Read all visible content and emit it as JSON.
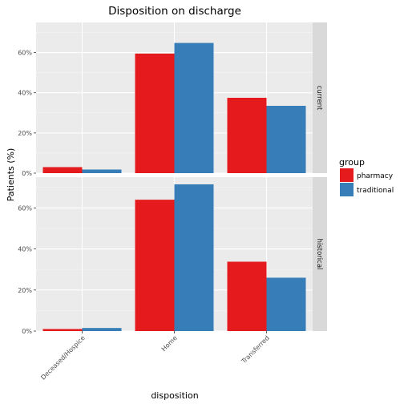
{
  "chart_data": {
    "type": "bar",
    "title": "Disposition on discharge",
    "xlabel": "disposition",
    "ylabel": "Patients (%)",
    "categories": [
      "Deceased/Hospice",
      "Home",
      "Transferred"
    ],
    "ylim": [
      0,
      0.75
    ],
    "yticks": [
      0,
      0.2,
      0.4,
      0.6
    ],
    "ytick_labels": [
      "0%",
      "20%",
      "40%",
      "60%"
    ],
    "legend": {
      "title": "group",
      "position": "right",
      "entries": [
        "pharmacy",
        "traditional"
      ]
    },
    "colors": {
      "pharmacy": "#E41A1C",
      "traditional": "#377EB8",
      "panel_bg": "#EBEBEB",
      "strip_bg": "#D9D9D9"
    },
    "grid": true,
    "facets": [
      {
        "label": "current",
        "series": [
          {
            "name": "pharmacy",
            "values": [
              0.03,
              0.595,
              0.375
            ]
          },
          {
            "name": "traditional",
            "values": [
              0.018,
              0.648,
              0.335
            ]
          }
        ]
      },
      {
        "label": "historical",
        "series": [
          {
            "name": "pharmacy",
            "values": [
              0.01,
              0.64,
              0.338
            ]
          },
          {
            "name": "traditional",
            "values": [
              0.015,
              0.715,
              0.26
            ]
          }
        ]
      }
    ]
  }
}
